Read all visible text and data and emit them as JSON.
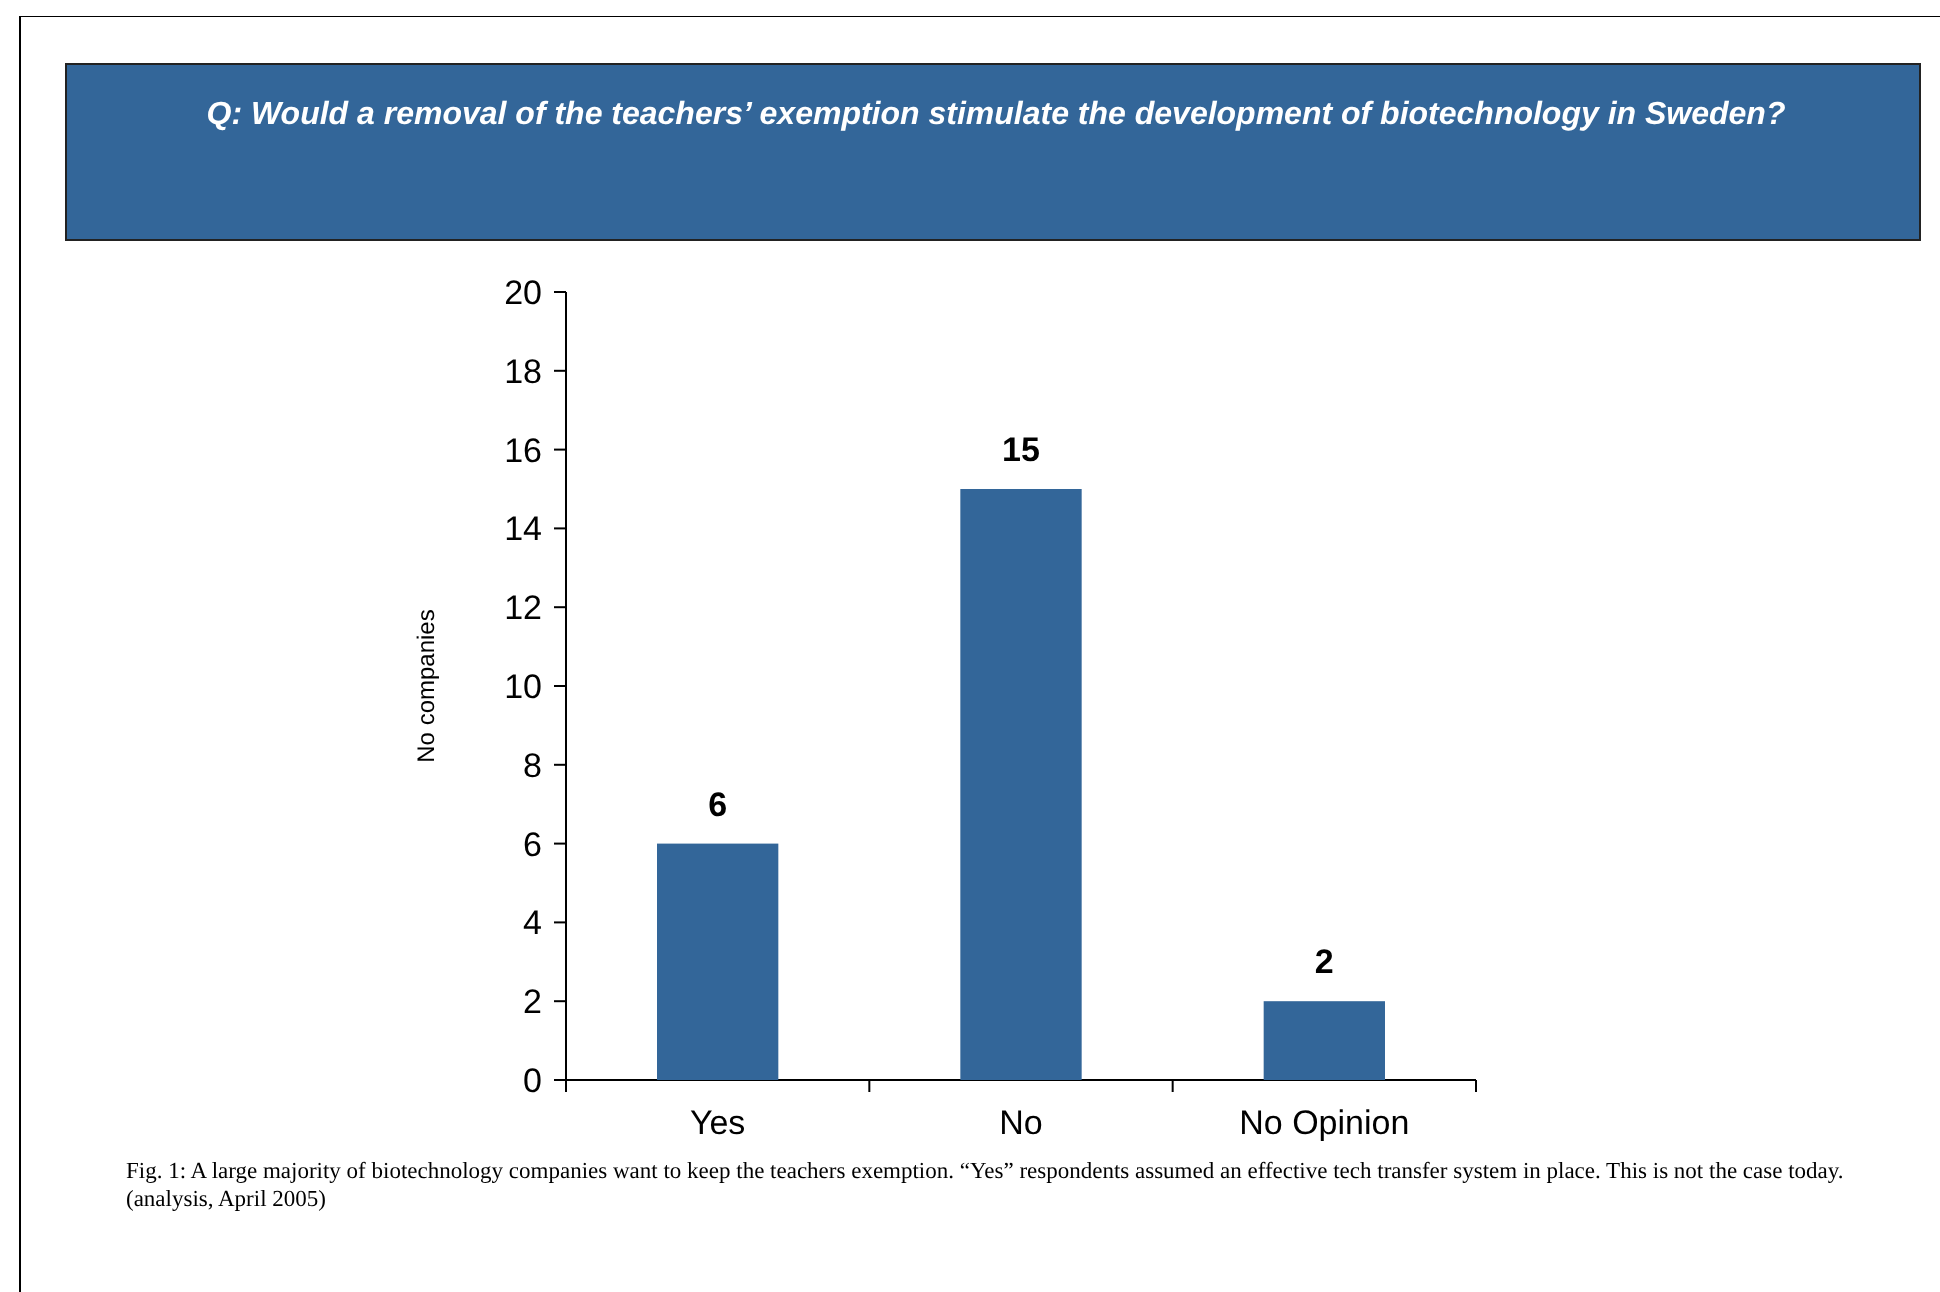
{
  "chart_data": {
    "type": "bar",
    "title": "Q: Would a removal of the teachers’ exemption stimulate the development of biotechnology in Sweden?",
    "ylabel": "No companies",
    "categories": [
      "Yes",
      "No",
      "No Opinion"
    ],
    "values": [
      6,
      15,
      2
    ],
    "color": "#336699",
    "ylim": [
      0,
      20
    ],
    "yticks": [
      0,
      2,
      4,
      6,
      8,
      10,
      12,
      14,
      16,
      18,
      20
    ],
    "data_labels": true,
    "annotations": [
      "Fig. 1: A large majority of biotechnology companies want to keep the teachers exemption. “Yes” respondents assumed an effective tech transfer system in place. This is not the case today. (analysis, April 2005)"
    ]
  }
}
